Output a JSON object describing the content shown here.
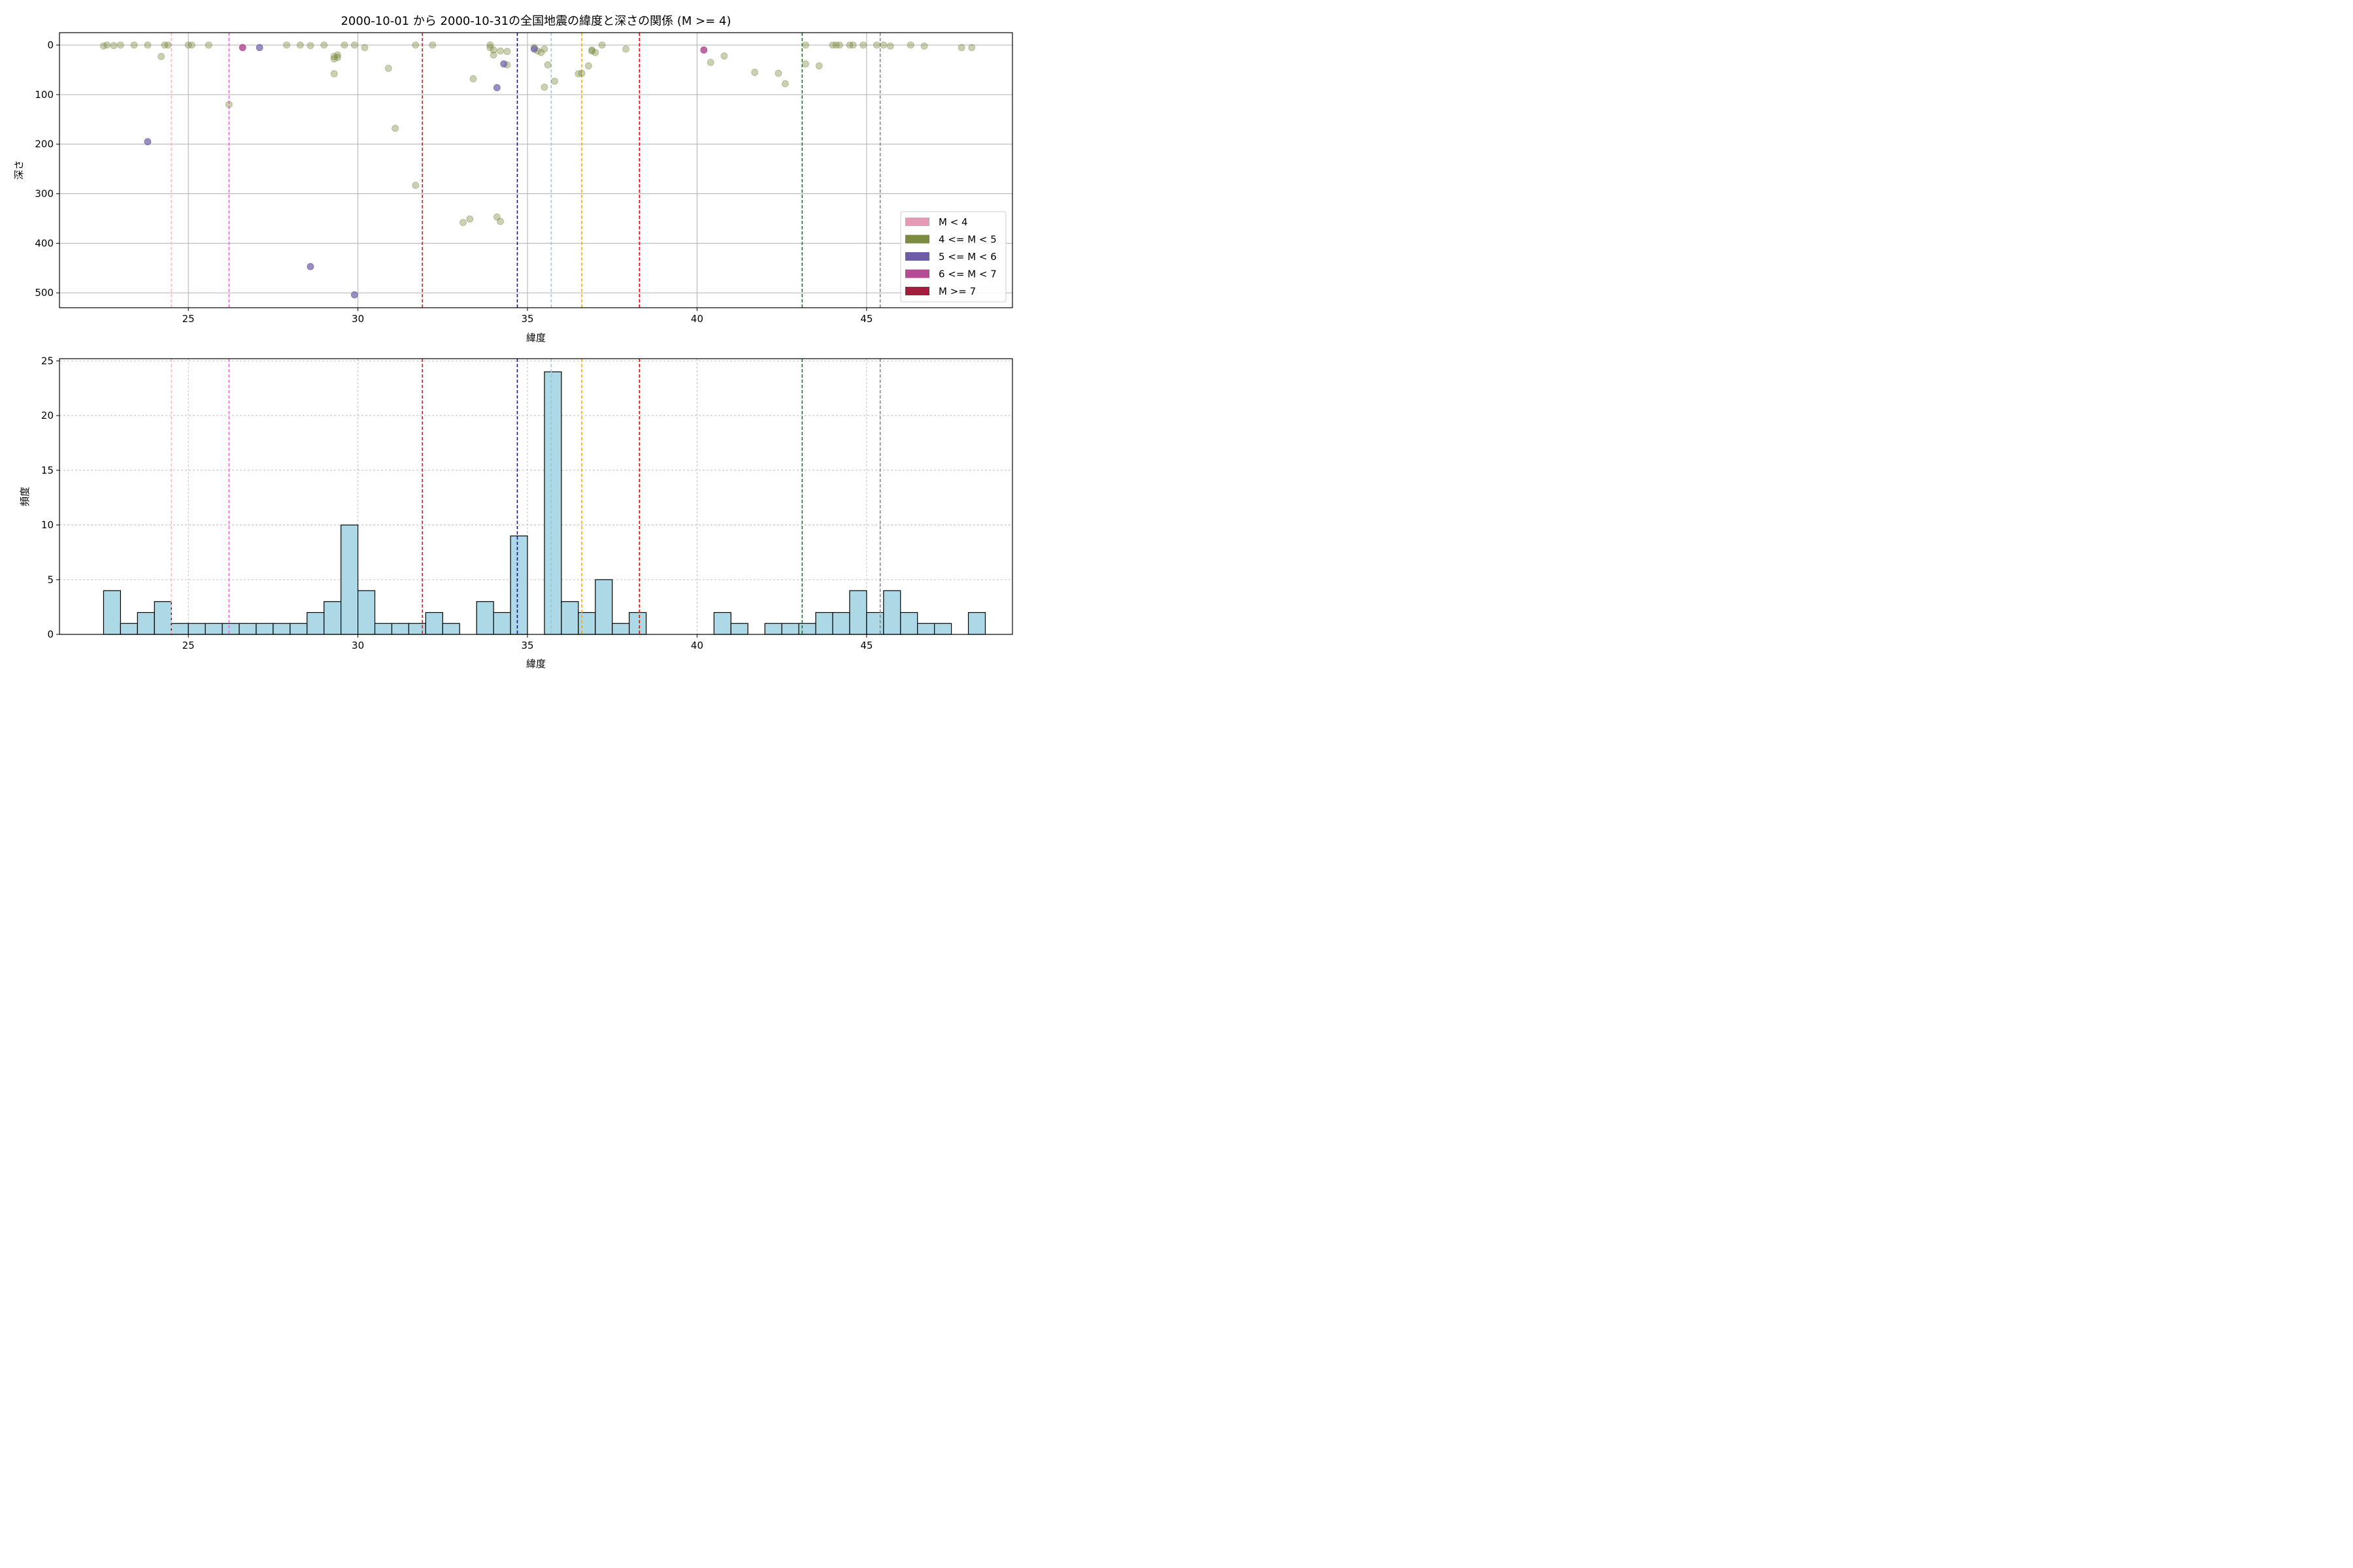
{
  "chart_data": [
    {
      "type": "scatter",
      "title": "2000-10-01 から 2000-10-31の全国地震の緯度と深さの関係 (M >= 4)",
      "xlabel": "緯度",
      "ylabel": "深さ",
      "xlim": [
        21.2,
        49.3
      ],
      "ylim": [
        530,
        -25
      ],
      "y_inverted": true,
      "xticks": [
        25,
        30,
        35,
        40,
        45
      ],
      "yticks": [
        0,
        100,
        200,
        300,
        400,
        500
      ],
      "grid": true,
      "legend_position": "lower right",
      "legend": [
        {
          "label": "M < 4",
          "color": "#e79ab6"
        },
        {
          "label": "4 <= M < 5",
          "color": "#7a8c42"
        },
        {
          "label": "5 <= M < 6",
          "color": "#6f5ca6"
        },
        {
          "label": "6 <= M < 7",
          "color": "#b44d95"
        },
        {
          "label": "M >= 7",
          "color": "#a31d3c"
        }
      ],
      "reference_lines": [
        {
          "x": 24.5,
          "color": "#ffb6c1"
        },
        {
          "x": 26.2,
          "color": "#ee66dd"
        },
        {
          "x": 31.9,
          "color": "#b22222"
        },
        {
          "x": 34.7,
          "color": "#0000cd"
        },
        {
          "x": 35.7,
          "color": "#87ceeb"
        },
        {
          "x": 36.6,
          "color": "#ffa500"
        },
        {
          "x": 38.3,
          "color": "#ff0000"
        },
        {
          "x": 43.1,
          "color": "#008000"
        },
        {
          "x": 45.4,
          "color": "#808080"
        }
      ],
      "series": [
        {
          "name": "4 <= M < 5",
          "color": "#7a8c42",
          "alpha": 0.4,
          "points": [
            [
              22.5,
              2
            ],
            [
              22.6,
              0
            ],
            [
              22.8,
              1
            ],
            [
              23.0,
              0
            ],
            [
              23.4,
              0
            ],
            [
              23.8,
              0
            ],
            [
              24.3,
              0
            ],
            [
              24.4,
              0
            ],
            [
              24.2,
              23
            ],
            [
              25.0,
              0
            ],
            [
              25.1,
              0
            ],
            [
              25.6,
              0
            ],
            [
              26.2,
              120
            ],
            [
              27.9,
              0
            ],
            [
              28.3,
              0
            ],
            [
              28.6,
              1
            ],
            [
              29.0,
              0
            ],
            [
              29.3,
              58
            ],
            [
              29.4,
              20
            ],
            [
              29.3,
              23
            ],
            [
              29.4,
              25
            ],
            [
              29.3,
              28
            ],
            [
              29.6,
              0
            ],
            [
              29.9,
              0
            ],
            [
              30.2,
              5
            ],
            [
              30.9,
              47
            ],
            [
              31.1,
              168
            ],
            [
              31.7,
              283
            ],
            [
              31.7,
              0
            ],
            [
              32.2,
              0
            ],
            [
              33.1,
              358
            ],
            [
              33.3,
              351
            ],
            [
              33.4,
              68
            ],
            [
              33.9,
              5
            ],
            [
              33.9,
              0
            ],
            [
              34.0,
              10
            ],
            [
              34.0,
              20
            ],
            [
              34.1,
              347
            ],
            [
              34.2,
              356
            ],
            [
              34.2,
              12
            ],
            [
              34.4,
              40
            ],
            [
              34.4,
              13
            ],
            [
              35.2,
              5
            ],
            [
              35.3,
              12
            ],
            [
              35.4,
              15
            ],
            [
              35.5,
              8
            ],
            [
              35.5,
              85
            ],
            [
              35.6,
              40
            ],
            [
              35.8,
              73
            ],
            [
              36.5,
              58
            ],
            [
              36.6,
              57
            ],
            [
              36.8,
              42
            ],
            [
              36.9,
              10
            ],
            [
              36.9,
              12
            ],
            [
              37.0,
              15
            ],
            [
              37.2,
              0
            ],
            [
              37.9,
              8
            ],
            [
              40.4,
              35
            ],
            [
              40.8,
              22
            ],
            [
              41.7,
              55
            ],
            [
              42.4,
              57
            ],
            [
              42.6,
              78
            ],
            [
              43.2,
              0
            ],
            [
              43.2,
              38
            ],
            [
              43.6,
              42
            ],
            [
              44.0,
              0
            ],
            [
              44.1,
              0
            ],
            [
              44.2,
              0
            ],
            [
              44.5,
              0
            ],
            [
              44.6,
              0
            ],
            [
              44.9,
              0
            ],
            [
              45.3,
              0
            ],
            [
              45.5,
              0
            ],
            [
              45.7,
              2
            ],
            [
              46.3,
              0
            ],
            [
              46.7,
              2
            ],
            [
              47.8,
              5
            ],
            [
              48.1,
              5
            ]
          ]
        },
        {
          "name": "5 <= M < 6",
          "color": "#6f5ca6",
          "alpha": 0.7,
          "points": [
            [
              23.8,
              195
            ],
            [
              27.1,
              5
            ],
            [
              28.6,
              447
            ],
            [
              29.9,
              504
            ],
            [
              34.1,
              86
            ],
            [
              34.3,
              38
            ],
            [
              35.2,
              8
            ]
          ]
        },
        {
          "name": "6 <= M < 7",
          "color": "#b44d95",
          "alpha": 0.85,
          "points": [
            [
              26.6,
              5
            ],
            [
              40.2,
              10
            ]
          ]
        }
      ]
    },
    {
      "type": "bar",
      "subtype": "histogram",
      "xlabel": "緯度",
      "ylabel": "頻度",
      "xlim": [
        21.2,
        49.3
      ],
      "ylim": [
        0,
        25.2
      ],
      "xticks": [
        25,
        30,
        35,
        40,
        45
      ],
      "yticks": [
        0,
        5,
        10,
        15,
        20,
        25
      ],
      "grid": true,
      "bar_color": "#add8e6",
      "bin_start": 22.5,
      "bin_width": 0.5,
      "values": [
        4,
        1,
        2,
        3,
        1,
        1,
        1,
        1,
        1,
        1,
        1,
        1,
        2,
        3,
        10,
        4,
        1,
        1,
        1,
        2,
        1,
        0,
        3,
        2,
        9,
        0,
        24,
        3,
        2,
        5,
        1,
        2,
        0,
        0,
        0,
        0,
        2,
        1,
        0,
        1,
        1,
        1,
        2,
        2,
        4,
        2,
        4,
        2,
        1,
        1,
        0,
        2
      ],
      "reference_lines": [
        {
          "x": 24.5,
          "color": "#ffb6c1"
        },
        {
          "x": 26.2,
          "color": "#ee66dd"
        },
        {
          "x": 31.9,
          "color": "#b22222"
        },
        {
          "x": 34.7,
          "color": "#0000cd"
        },
        {
          "x": 35.7,
          "color": "#87ceeb"
        },
        {
          "x": 36.6,
          "color": "#ffa500"
        },
        {
          "x": 38.3,
          "color": "#ff0000"
        },
        {
          "x": 43.1,
          "color": "#008000"
        },
        {
          "x": 45.4,
          "color": "#808080"
        }
      ]
    }
  ]
}
